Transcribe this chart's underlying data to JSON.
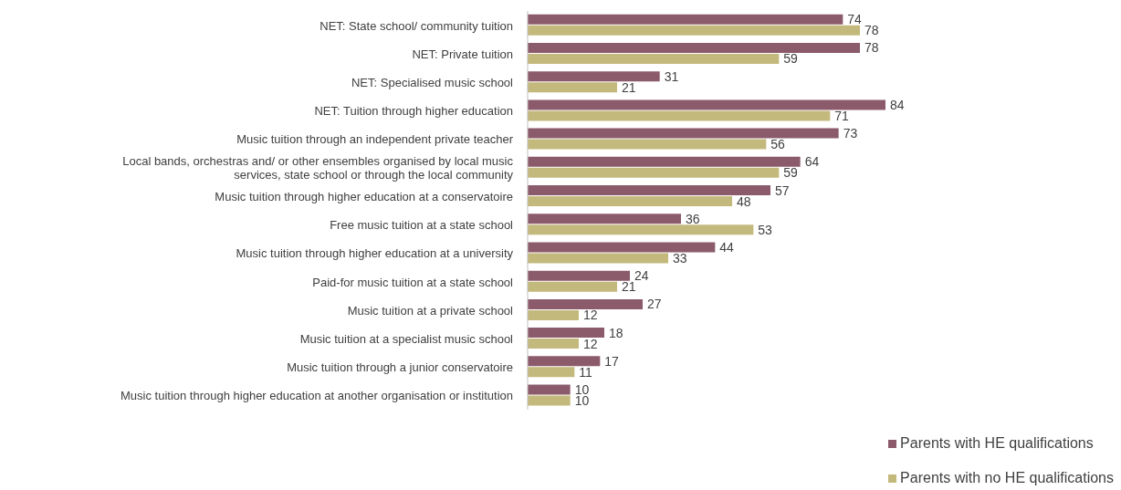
{
  "chart_data": {
    "type": "bar",
    "orientation": "horizontal",
    "data_labels": true,
    "legend": "bottom right",
    "categories": [
      "NET: State school/ community tuition",
      "NET: Private tuition",
      "NET: Specialised music school",
      "NET: Tuition through higher education",
      "Music tuition through an independent private teacher",
      "Local bands, orchestras and/ or other ensembles organised by local music services, state school or through the local community",
      "Music tuition through higher education at a conservatoire",
      "Free music tuition at a state school",
      "Music tuition through higher education at a university",
      "Paid-for music tuition at a state school",
      "Music tuition at a private school",
      "Music tuition at a specialist music school",
      "Music tuition through a junior conservatoire",
      "Music tuition through higher education at another organisation or institution"
    ],
    "series": [
      {
        "name": "Parents with HE qualifications",
        "color": "#8c5b6b",
        "values": [
          74,
          78,
          31,
          84,
          73,
          64,
          57,
          36,
          44,
          24,
          27,
          18,
          17,
          10
        ]
      },
      {
        "name": "Parents with no HE qualifications",
        "color": "#c4b97c",
        "values": [
          78,
          59,
          21,
          71,
          56,
          59,
          48,
          53,
          33,
          21,
          12,
          12,
          11,
          10
        ]
      }
    ]
  }
}
